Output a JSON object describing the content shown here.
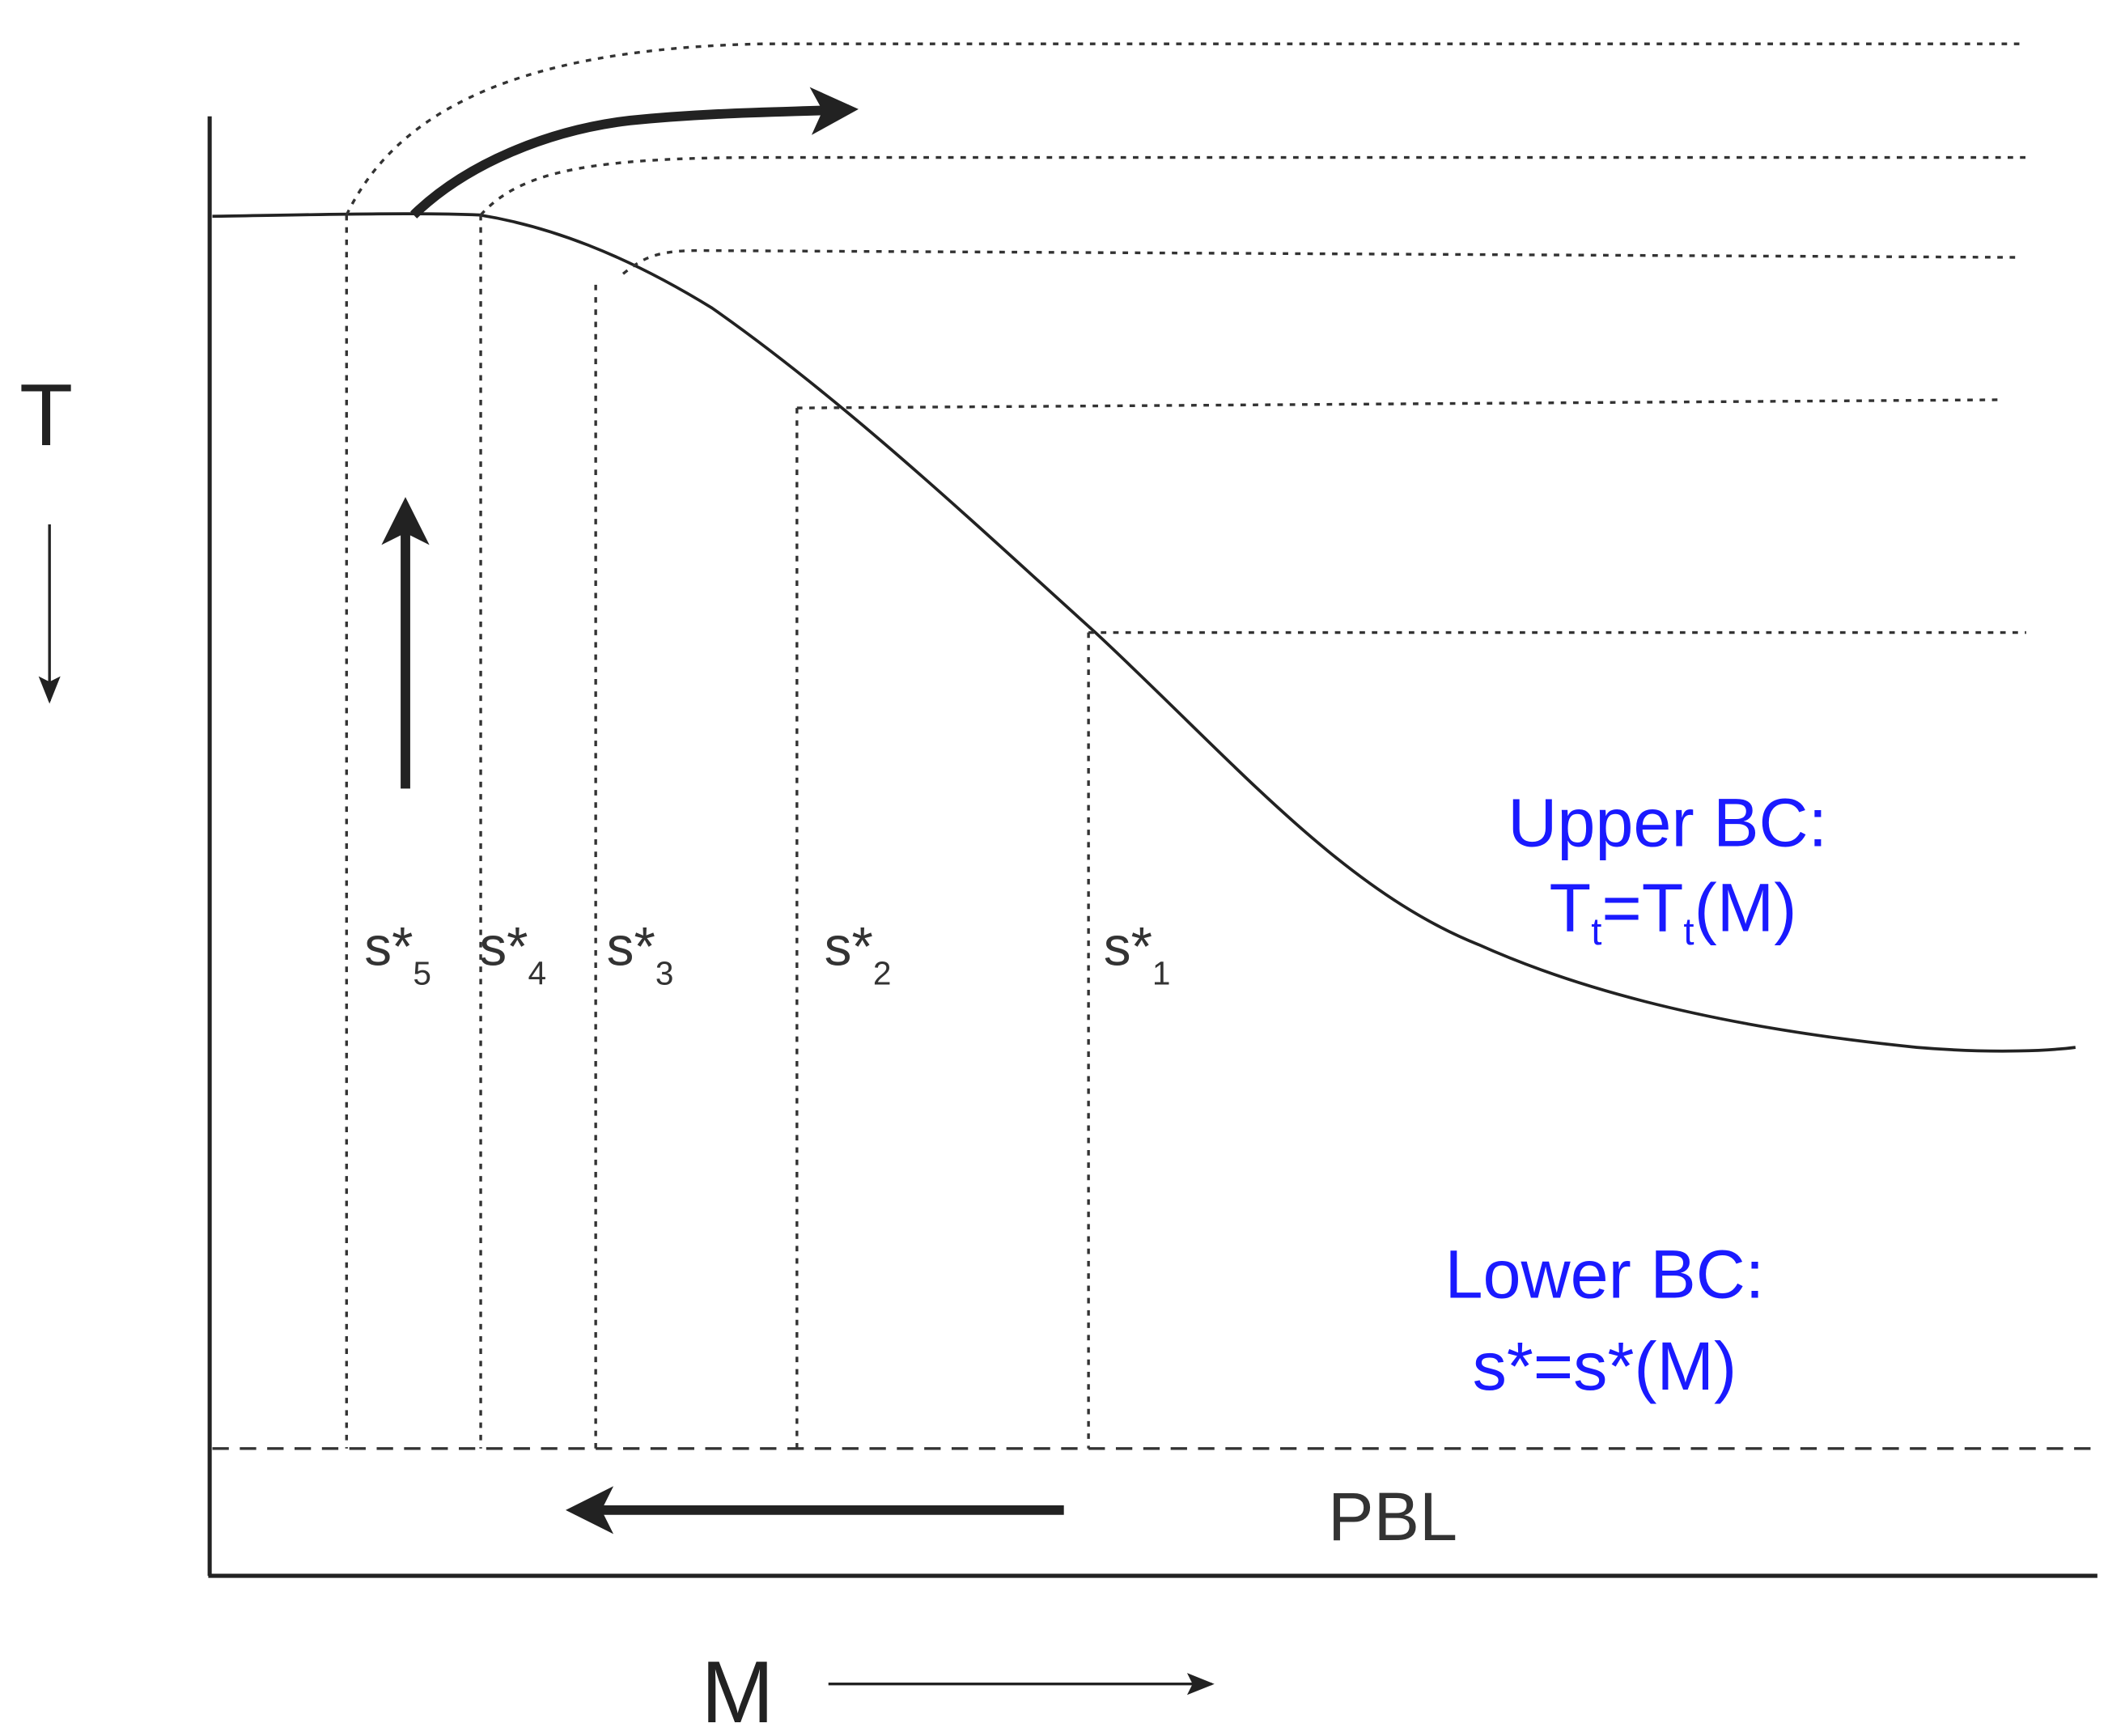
{
  "axes": {
    "y_label": "T",
    "x_label": "M"
  },
  "levels": [
    {
      "base": "s*",
      "sub": "5"
    },
    {
      "base": "s*",
      "sub": "4"
    },
    {
      "base": "s*",
      "sub": "3"
    },
    {
      "base": "s*",
      "sub": "2"
    },
    {
      "base": "s*",
      "sub": "1"
    }
  ],
  "upper_bc": {
    "title": "Upper BC:",
    "formula": [
      "T",
      "t",
      "=T",
      "t",
      "(M)"
    ]
  },
  "lower_bc": {
    "title": "Lower BC:",
    "formula": "s*=s*(M)"
  },
  "pbl": "PBL"
}
